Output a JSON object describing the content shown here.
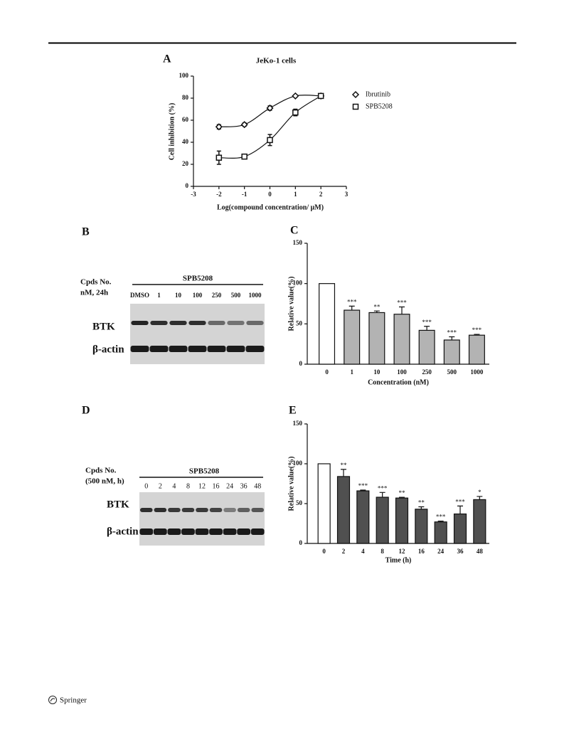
{
  "chart_data": [
    {
      "type": "line",
      "label": "A",
      "title": "JeKo-1 cells",
      "xlabel": "Log(compound concentration/ μM)",
      "ylabel": "Cell inhibition (%)",
      "x": [
        -2,
        -1,
        0,
        1,
        2
      ],
      "series": [
        {
          "name": "Ibrutinib",
          "color": "#111111",
          "marker": "diamond",
          "values": [
            54,
            56,
            71,
            82,
            82
          ],
          "errors": [
            2,
            1.5,
            2,
            1,
            1
          ]
        },
        {
          "name": "SPB5208",
          "color": "#111111",
          "marker": "square",
          "values": [
            26,
            27,
            42,
            67,
            82
          ],
          "errors": [
            6,
            1.5,
            5,
            3,
            1
          ]
        }
      ],
      "xlim": [
        -3,
        3
      ],
      "xticks": [
        -3,
        -2,
        -1,
        0,
        1,
        2,
        3
      ],
      "ylim": [
        0,
        100
      ],
      "yticks": [
        0,
        20,
        40,
        60,
        80,
        100
      ]
    },
    {
      "type": "bar",
      "label": "C",
      "xlabel": "Concentration (nM)",
      "ylabel": "Relative value(%)",
      "categories": [
        "0",
        "1",
        "10",
        "100",
        "250",
        "500",
        "1000"
      ],
      "values": [
        100,
        67,
        64,
        62,
        42,
        30,
        36
      ],
      "errors": [
        0,
        5,
        2,
        9,
        5,
        4,
        1
      ],
      "annotations": [
        null,
        "***",
        "**",
        "***",
        "***",
        "***",
        "***"
      ],
      "colors": [
        "#ffffff",
        "#b3b3b3",
        "#b3b3b3",
        "#b3b3b3",
        "#b3b3b3",
        "#b3b3b3",
        "#b3b3b3"
      ],
      "ylim": [
        0,
        150
      ],
      "yticks": [
        0,
        50,
        100,
        150
      ]
    },
    {
      "type": "bar",
      "label": "E",
      "xlabel": "Time (h)",
      "ylabel": "Relative value(%)",
      "categories": [
        "0",
        "2",
        "4",
        "8",
        "12",
        "16",
        "24",
        "36",
        "48"
      ],
      "values": [
        100,
        84,
        66,
        58,
        57,
        43,
        27,
        37,
        55
      ],
      "errors": [
        0,
        9,
        1,
        6,
        1,
        3,
        1,
        10,
        4
      ],
      "annotations": [
        null,
        "**",
        "***",
        "***",
        "**",
        "**",
        "***",
        "***",
        "*"
      ],
      "colors": [
        "#ffffff",
        "#505050",
        "#505050",
        "#505050",
        "#505050",
        "#505050",
        "#505050",
        "#505050",
        "#505050"
      ],
      "ylim": [
        0,
        150
      ],
      "yticks": [
        0,
        50,
        100,
        150
      ]
    }
  ],
  "blots": [
    {
      "label": "B",
      "header": [
        "Cpds No.",
        "nM, 24h"
      ],
      "compound": "SPB5208",
      "lanes": [
        "DMSO",
        "1",
        "10",
        "100",
        "250",
        "500",
        "1000"
      ],
      "rows": [
        "BTK",
        "β-actin"
      ]
    },
    {
      "label": "D",
      "header": [
        "Cpds No.",
        "(500 nM, h)"
      ],
      "compound": "SPB5208",
      "lanes": [
        "0",
        "2",
        "4",
        "8",
        "12",
        "16",
        "24",
        "36",
        "48"
      ],
      "rows": [
        "BTK",
        "β-actin"
      ]
    }
  ],
  "footer": "Springer"
}
